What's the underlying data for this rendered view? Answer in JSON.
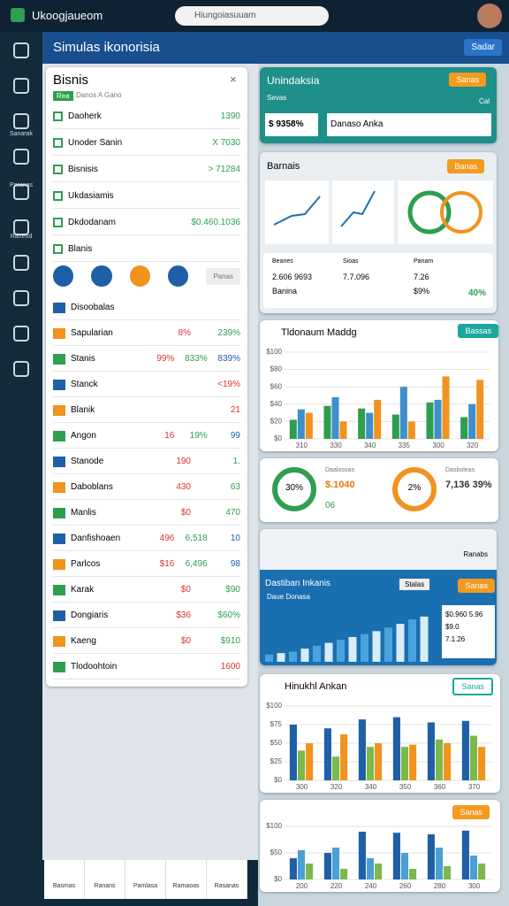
{
  "browser": {
    "tab": "Ukoogjaueom",
    "address": "Hiungoiasuuam"
  },
  "header": {
    "title": "Simulas ikonorisia",
    "button": "Sadar"
  },
  "sidebar": {
    "items": [
      "Sanarak",
      "Paranas",
      "Ranend"
    ]
  },
  "list_panel": {
    "title": "Bisnis",
    "tag": "Rea",
    "subtitle": "Danos A Gano",
    "menu": [
      [
        "Daoherk",
        "1390"
      ],
      [
        "Unoder Sanin",
        "X 7030"
      ],
      [
        "Bisnisis",
        "> 71284"
      ],
      [
        "Ukdasiamis"
      ],
      [
        "Dkdodanam",
        "$0.460.1036"
      ],
      [
        "Blanis"
      ]
    ],
    "chip": "Panas",
    "rows": [
      [
        "Disoobalas"
      ],
      [
        "Sapularian",
        "8%",
        "239%"
      ],
      [
        "Stanis",
        "99%",
        "833%",
        "839%"
      ],
      [
        "Stanck",
        "<19%"
      ],
      [
        "Blanik",
        "21"
      ],
      [
        "Angon",
        "16",
        "19%",
        "99"
      ],
      [
        "Stanode",
        "190",
        "1."
      ],
      [
        "Daboblans",
        "430",
        "63"
      ],
      [
        "Manlis",
        "$0",
        "470"
      ],
      [
        "Danfishoaen",
        "496",
        "6,518",
        "10"
      ],
      [
        "Parlcos",
        "$16",
        "6,496",
        "98"
      ],
      [
        "Karak",
        "$0",
        "$90"
      ],
      [
        "Dongiaris",
        "$36",
        "$60%"
      ],
      [
        "Kaeng",
        "$0",
        "$910"
      ],
      [
        "Tlodoohtoin",
        "1600"
      ]
    ]
  },
  "card_a": {
    "title": "Unindaksia",
    "button": "Sanas",
    "tag": "Sevas",
    "note": "Cal",
    "stat": "$ 9358%",
    "label": "Danaso Anka"
  },
  "card_b": {
    "title": "Barnais",
    "button": "Banas",
    "stats": [
      [
        "Beanes",
        "2.606 9693",
        "Banina"
      ],
      [
        "Sioas",
        "7.7.096"
      ],
      [
        "Panam",
        "7.26",
        "$9%"
      ]
    ],
    "foot": "40%"
  },
  "chart1": {
    "type": "bar",
    "title": "Tldonaum Maddg",
    "button": "Bassas",
    "categories": [
      "310",
      "330",
      "340",
      "335",
      "300",
      "320"
    ],
    "series": [
      {
        "color": "#2e9e4f",
        "values": [
          22,
          38,
          35,
          28,
          42,
          25
        ]
      },
      {
        "color": "#3f8fc9",
        "values": [
          34,
          48,
          30,
          60,
          45,
          40
        ]
      },
      {
        "color": "#f0931f",
        "values": [
          30,
          20,
          45,
          20,
          72,
          68
        ]
      }
    ],
    "ylim": [
      0,
      100
    ],
    "yticks": [
      {
        "value": 0,
        "label": "$0"
      },
      {
        "value": 20,
        "label": "$20"
      },
      {
        "value": 40,
        "label": "$40"
      },
      {
        "value": 60,
        "label": "$60"
      },
      {
        "value": 80,
        "label": "$80"
      },
      {
        "value": 100,
        "label": "$100"
      }
    ]
  },
  "donuts": [
    {
      "center": "30%",
      "title": "Daalosoas",
      "label": "$.1040",
      "sub": "06"
    },
    {
      "center": "2%",
      "title": "Dasboleas",
      "label": "7,136 39%"
    }
  ],
  "toolbar": {
    "label": "Ranabs"
  },
  "area": {
    "type": "bar",
    "title": "Dastiban Inkanis",
    "sub": "Daue Donasa",
    "button": "Sanas",
    "badge": "Stalas",
    "values": [
      10,
      12,
      14,
      18,
      22,
      26,
      30,
      34,
      38,
      42,
      47,
      52,
      58,
      62
    ],
    "ylim": [
      0,
      80
    ],
    "stats": [
      "$0.960 5.96",
      "$9.0",
      "7.1.26"
    ]
  },
  "chart2": {
    "type": "bar",
    "title": "Hinukhl Ankan",
    "button": "Sanas",
    "categories": [
      "300",
      "320",
      "340",
      "350",
      "360",
      "370"
    ],
    "series": [
      {
        "color": "#1f5fa8",
        "values": [
          75,
          70,
          82,
          85,
          78,
          80
        ]
      },
      {
        "color": "#7cb84a",
        "values": [
          40,
          32,
          45,
          45,
          55,
          60
        ]
      },
      {
        "color": "#f0931f",
        "values": [
          50,
          62,
          50,
          48,
          50,
          45
        ]
      }
    ],
    "ylim": [
      0,
      100
    ],
    "yticks": [
      {
        "value": 0,
        "label": "$0"
      },
      {
        "value": 25,
        "label": "$25"
      },
      {
        "value": 50,
        "label": "$50"
      },
      {
        "value": 75,
        "label": "$75"
      },
      {
        "value": 100,
        "label": "$100"
      }
    ]
  },
  "chart3": {
    "type": "bar",
    "button": "Sanas",
    "categories": [
      "200",
      "220",
      "240",
      "260",
      "280",
      "300"
    ],
    "series": [
      {
        "color": "#1f5fa8",
        "values": [
          40,
          50,
          90,
          88,
          85,
          92
        ]
      },
      {
        "color": "#4a9fd4",
        "values": [
          55,
          60,
          40,
          50,
          60,
          45
        ]
      },
      {
        "color": "#7cb84a",
        "values": [
          30,
          20,
          30,
          20,
          25,
          30
        ]
      }
    ],
    "ylim": [
      0,
      100
    ],
    "yticks": [
      {
        "value": 0,
        "label": "$0"
      },
      {
        "value": 50,
        "label": "$50"
      },
      {
        "value": 100,
        "label": "$100"
      }
    ]
  },
  "bottom_nav": [
    "Basmas",
    "Ranans",
    "Pamlasa",
    "Ramaoas",
    "Rasanas"
  ]
}
